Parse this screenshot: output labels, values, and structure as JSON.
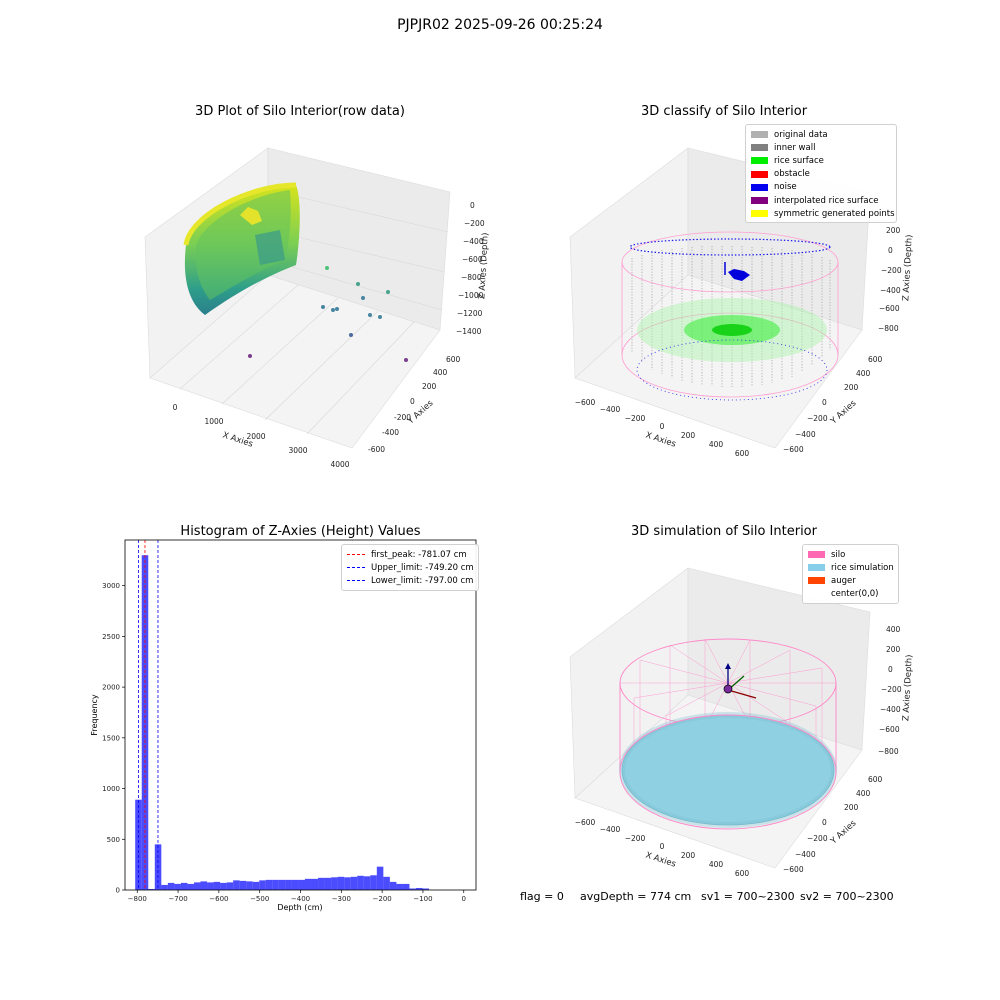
{
  "figure": {
    "title": "PJPJR02 2025-09-26 00:25:24",
    "footer": {
      "flag": "flag = 0",
      "avg_depth": "avgDepth = 774 cm",
      "sv1": "sv1 = 700~2300",
      "sv2": "sv2 = 700~2300"
    }
  },
  "panels": {
    "raw": {
      "title": "3D Plot of Silo Interior(row data)",
      "xlabel": "X Axies",
      "ylabel": "Y Axies",
      "zlabel": "Z Axies (Depth)",
      "xticks": [
        "0",
        "1000",
        "2000",
        "3000",
        "4000"
      ],
      "yticks": [
        "-600",
        "-400",
        "-200",
        "0",
        "200",
        "400",
        "600"
      ],
      "zticks": [
        "0",
        "−200",
        "−400",
        "−600",
        "−800",
        "−1000",
        "−1200",
        "−1400"
      ]
    },
    "classify": {
      "title": "3D classify of Silo Interior",
      "xlabel": "X Axies",
      "ylabel": "Y Axies",
      "zlabel": "Z Axies (Depth)",
      "xticks": [
        "−600",
        "−400",
        "−200",
        "0",
        "200",
        "400",
        "600"
      ],
      "yticks": [
        "−600",
        "−400",
        "−200",
        "0",
        "200",
        "400",
        "600"
      ],
      "zticks": [
        "200",
        "0",
        "−200",
        "−400",
        "−600",
        "−800"
      ],
      "legend": [
        {
          "label": "original data",
          "color": "#b0b0b0"
        },
        {
          "label": "inner wall",
          "color": "#808080"
        },
        {
          "label": "rice surface",
          "color": "#00ee00"
        },
        {
          "label": "obstacle",
          "color": "#ff0000"
        },
        {
          "label": "noise",
          "color": "#0000ee"
        },
        {
          "label": "interpolated rice surface",
          "color": "#800080"
        },
        {
          "label": "symmetric generated points",
          "color": "#ffff00"
        }
      ]
    },
    "simulation": {
      "title": "3D simulation of Silo Interior",
      "xlabel": "X Axies",
      "ylabel": "Y Axies",
      "zlabel": "Z Axies (Depth)",
      "xticks": [
        "−600",
        "−400",
        "−200",
        "0",
        "200",
        "400",
        "600"
      ],
      "yticks": [
        "−600",
        "−400",
        "−200",
        "0",
        "200",
        "400",
        "600"
      ],
      "zticks": [
        "400",
        "200",
        "0",
        "−200",
        "−400",
        "−600",
        "−800"
      ],
      "legend": [
        {
          "label": "silo",
          "color": "#ff69b4"
        },
        {
          "label": "rice simulation",
          "color": "#87ceeb"
        },
        {
          "label": "auger",
          "color": "#ff4500"
        },
        {
          "label": "center(0,0)",
          "color": ""
        }
      ]
    }
  },
  "chart_data": {
    "type": "bar",
    "title": "Histogram of Z-Axies (Height) Values",
    "xlabel": "Depth (cm)",
    "ylabel": "Frequency",
    "xlim": [
      -830,
      30
    ],
    "ylim": [
      0,
      3450
    ],
    "xticks": [
      -800,
      -700,
      -600,
      -500,
      -400,
      -300,
      -200,
      -100,
      0
    ],
    "xtick_labels": [
      "−800",
      "−700",
      "−600",
      "−500",
      "−400",
      "−300",
      "−200",
      "−100",
      "0"
    ],
    "yticks": [
      0,
      500,
      1000,
      1500,
      2000,
      2500,
      3000
    ],
    "yticks_labels": [
      "0",
      "500",
      "1000",
      "1500",
      "2000",
      "2500",
      "3000"
    ],
    "bin_width": 16,
    "bin_edges_start": -805,
    "values": [
      890,
      3300,
      10,
      450,
      50,
      70,
      60,
      70,
      60,
      75,
      85,
      75,
      80,
      70,
      75,
      95,
      90,
      85,
      80,
      95,
      100,
      100,
      100,
      100,
      100,
      100,
      110,
      110,
      120,
      120,
      125,
      130,
      125,
      130,
      140,
      135,
      145,
      230,
      130,
      80,
      60,
      60,
      15,
      20,
      15
    ],
    "series_color": "#0000ff",
    "reference_lines": [
      {
        "label": "first_peak: -781.07 cm",
        "x": -781.07,
        "color": "#ff0000"
      },
      {
        "label": "Upper_limit: -749.20 cm",
        "x": -749.2,
        "color": "#0000ff"
      },
      {
        "label": "Lower_limit: -797.00 cm",
        "x": -797.0,
        "color": "#0000ff"
      }
    ],
    "legend_placement": "top-right"
  }
}
